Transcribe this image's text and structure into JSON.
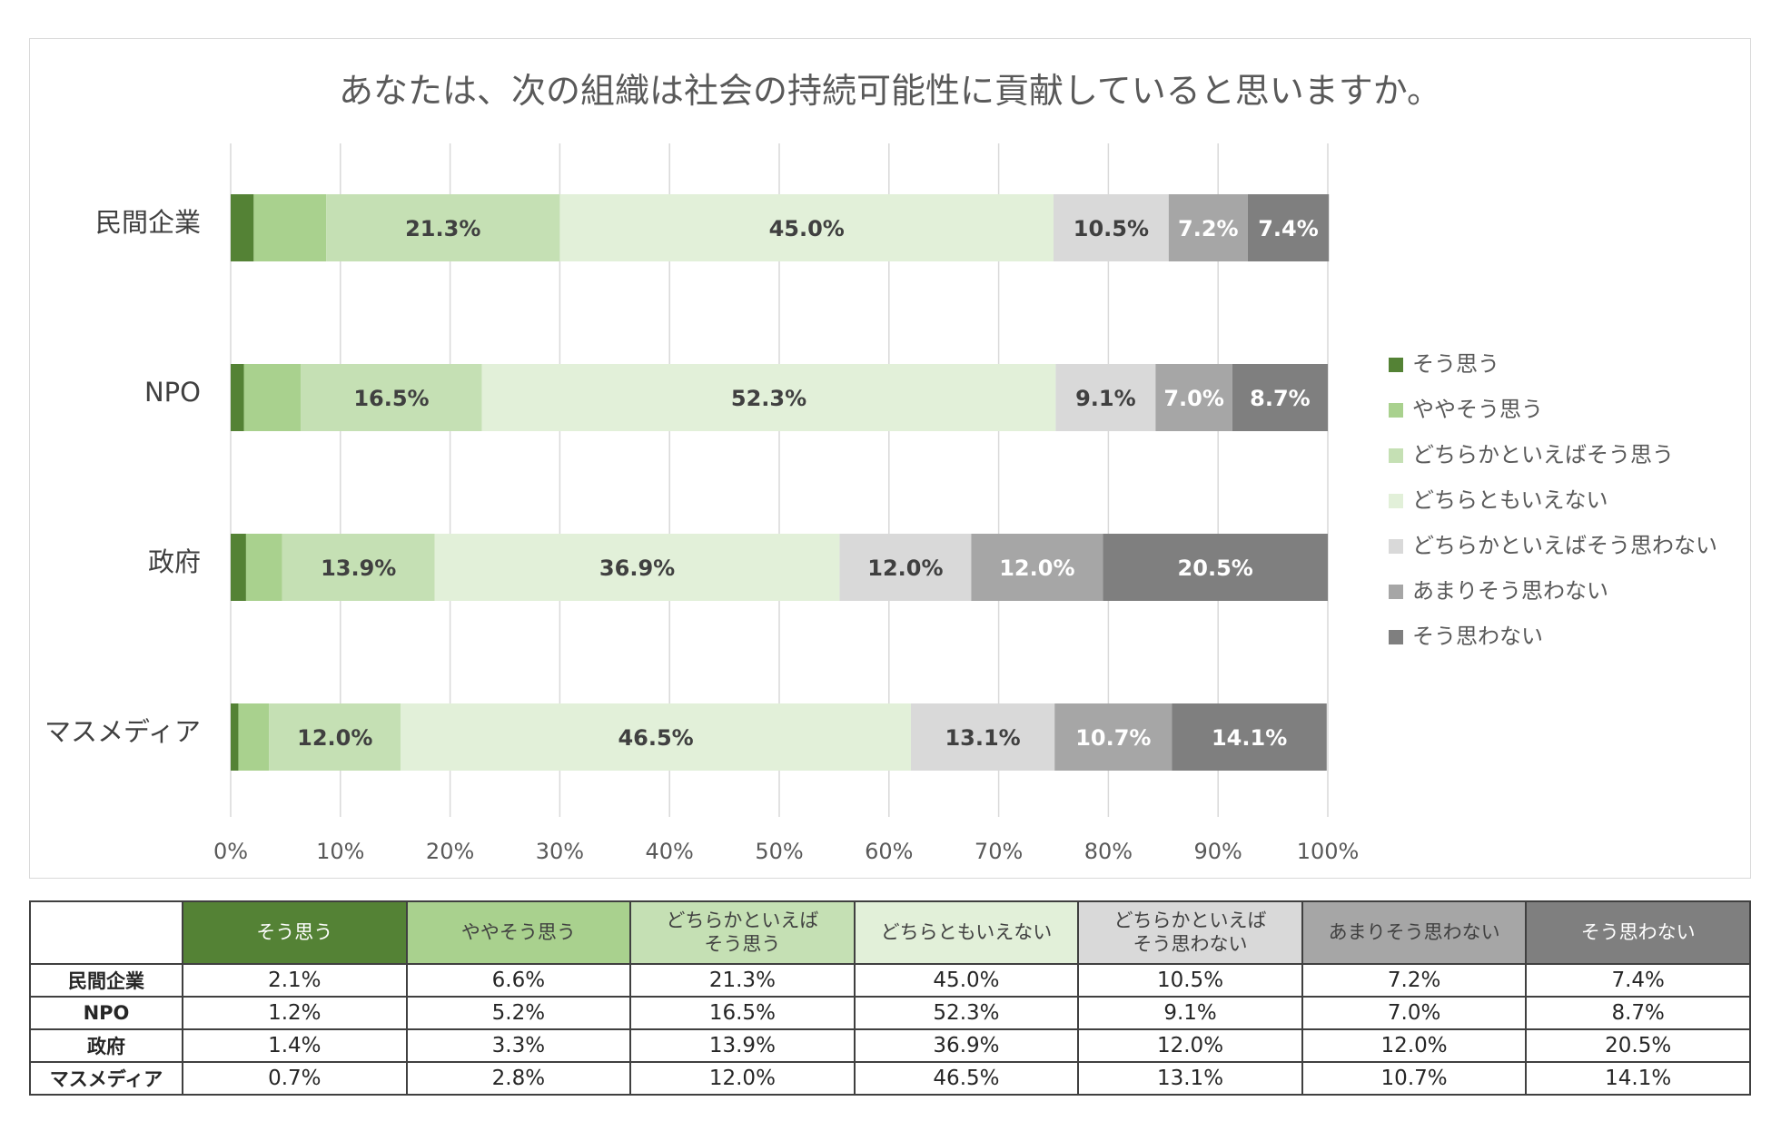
{
  "chart_data": {
    "type": "bar",
    "orientation": "horizontal",
    "stacked": "percent",
    "title": "あなたは、次の組織は社会の持続可能性に貢献していると思いますか。",
    "categories": [
      "民間企業",
      "NPO",
      "政府",
      "マスメディア"
    ],
    "xlim": [
      0,
      100
    ],
    "xticks": [
      "0%",
      "10%",
      "20%",
      "30%",
      "40%",
      "50%",
      "60%",
      "70%",
      "80%",
      "90%",
      "100%"
    ],
    "legend_position": "right",
    "grid": true,
    "series": [
      {
        "name": "そう思う",
        "color": "#548235",
        "text_color": "#ffffff",
        "values": [
          2.1,
          1.2,
          1.4,
          0.7
        ],
        "labels": [
          "",
          "",
          "",
          ""
        ]
      },
      {
        "name": "ややそう思う",
        "color": "#a9d18e",
        "text_color": "#404040",
        "values": [
          6.6,
          5.2,
          3.3,
          2.8
        ],
        "labels": [
          "",
          "",
          "",
          ""
        ]
      },
      {
        "name": "どちらかといえばそう思う",
        "color": "#c5e0b4",
        "text_color": "#404040",
        "values": [
          21.3,
          16.5,
          13.9,
          12.0
        ],
        "labels": [
          "21.3%",
          "16.5%",
          "13.9%",
          "12.0%"
        ]
      },
      {
        "name": "どちらともいえない",
        "color": "#e2f0d9",
        "text_color": "#404040",
        "values": [
          45.0,
          52.3,
          36.9,
          46.5
        ],
        "labels": [
          "45.0%",
          "52.3%",
          "36.9%",
          "46.5%"
        ]
      },
      {
        "name": "どちらかといえばそう思わない",
        "color": "#d9d9d9",
        "text_color": "#404040",
        "values": [
          10.5,
          9.1,
          12.0,
          13.1
        ],
        "labels": [
          "10.5%",
          "9.1%",
          "12.0%",
          "13.1%"
        ]
      },
      {
        "name": "あまりそう思わない",
        "color": "#a6a6a6",
        "text_color": "#ffffff",
        "values": [
          7.2,
          7.0,
          12.0,
          10.7
        ],
        "labels": [
          "7.2%",
          "7.0%",
          "12.0%",
          "10.7%"
        ]
      },
      {
        "name": "そう思わない",
        "color": "#7f7f7f",
        "text_color": "#ffffff",
        "values": [
          7.4,
          8.7,
          20.5,
          14.1
        ],
        "labels": [
          "7.4%",
          "8.7%",
          "20.5%",
          "14.1%"
        ]
      }
    ]
  },
  "table": {
    "headers": [
      {
        "label": "そう思う",
        "bg": "#548235",
        "color": "#ffffff"
      },
      {
        "label": "ややそう思う",
        "bg": "#a9d18e",
        "color": "#404040"
      },
      {
        "label": "どちらかといえば\nそう思う",
        "bg": "#c5e0b4",
        "color": "#404040"
      },
      {
        "label": "どちらともいえない",
        "bg": "#e2f0d9",
        "color": "#404040"
      },
      {
        "label": "どちらかといえば\nそう思わない",
        "bg": "#d9d9d9",
        "color": "#404040"
      },
      {
        "label": "あまりそう思わない",
        "bg": "#a6a6a6",
        "color": "#404040"
      },
      {
        "label": "そう思わない",
        "bg": "#7f7f7f",
        "color": "#ffffff"
      }
    ],
    "rows": [
      {
        "label": "民間企業",
        "cells": [
          "2.1%",
          "6.6%",
          "21.3%",
          "45.0%",
          "10.5%",
          "7.2%",
          "7.4%"
        ]
      },
      {
        "label": "NPO",
        "cells": [
          "1.2%",
          "5.2%",
          "16.5%",
          "52.3%",
          "9.1%",
          "7.0%",
          "8.7%"
        ]
      },
      {
        "label": "政府",
        "cells": [
          "1.4%",
          "3.3%",
          "13.9%",
          "36.9%",
          "12.0%",
          "12.0%",
          "20.5%"
        ]
      },
      {
        "label": "マスメディア",
        "cells": [
          "0.7%",
          "2.8%",
          "12.0%",
          "46.5%",
          "13.1%",
          "10.7%",
          "14.1%"
        ]
      }
    ]
  }
}
